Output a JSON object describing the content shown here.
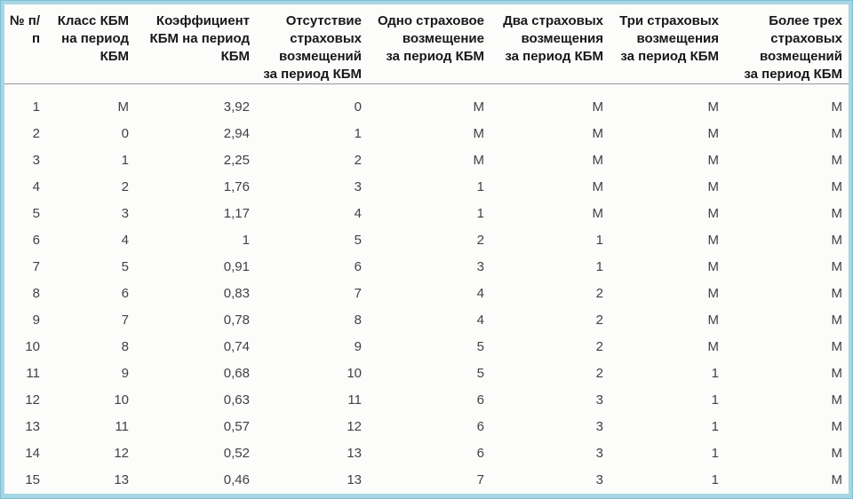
{
  "chart_data": {
    "type": "table",
    "title": "",
    "columns": [
      "№ п/п",
      "Класс КБМ на период КБМ",
      "Коэффициент КБМ на период КБМ",
      "Отсутствие страховых возмещений за период КБМ",
      "Одно страховое возмещение за период КБМ",
      "Два страховых возмещения за период КБМ",
      "Три страховых возмещения за период КБМ",
      "Более трех страховых возмещений за период КБМ"
    ],
    "rows": [
      [
        "1",
        "М",
        "3,92",
        "0",
        "М",
        "М",
        "М",
        "М"
      ],
      [
        "2",
        "0",
        "2,94",
        "1",
        "М",
        "М",
        "М",
        "М"
      ],
      [
        "3",
        "1",
        "2,25",
        "2",
        "М",
        "М",
        "М",
        "М"
      ],
      [
        "4",
        "2",
        "1,76",
        "3",
        "1",
        "М",
        "М",
        "М"
      ],
      [
        "5",
        "3",
        "1,17",
        "4",
        "1",
        "М",
        "М",
        "М"
      ],
      [
        "6",
        "4",
        "1",
        "5",
        "2",
        "1",
        "М",
        "М"
      ],
      [
        "7",
        "5",
        "0,91",
        "6",
        "3",
        "1",
        "М",
        "М"
      ],
      [
        "8",
        "6",
        "0,83",
        "7",
        "4",
        "2",
        "М",
        "М"
      ],
      [
        "9",
        "7",
        "0,78",
        "8",
        "4",
        "2",
        "М",
        "М"
      ],
      [
        "10",
        "8",
        "0,74",
        "9",
        "5",
        "2",
        "М",
        "М"
      ],
      [
        "11",
        "9",
        "0,68",
        "10",
        "5",
        "2",
        "1",
        "М"
      ],
      [
        "12",
        "10",
        "0,63",
        "11",
        "6",
        "3",
        "1",
        "М"
      ],
      [
        "13",
        "11",
        "0,57",
        "12",
        "6",
        "3",
        "1",
        "М"
      ],
      [
        "14",
        "12",
        "0,52",
        "13",
        "6",
        "3",
        "1",
        "М"
      ],
      [
        "15",
        "13",
        "0,46",
        "13",
        "7",
        "3",
        "1",
        "М"
      ]
    ]
  },
  "table": {
    "headers": [
      "№ п/п",
      "Класс КБМ\nна период\nКБМ",
      "Коэффициент\nКБМ на период\nКБМ",
      "Отсутствие\nстраховых\nвозмещений\nза период КБМ",
      "Одно страховое\nвозмещение\nза период КБМ",
      "Два страховых\nвозмещения\nза период КБМ",
      "Три страховых\nвозмещения\nза период КБМ",
      "Более трех\nстраховых\nвозмещений\nза период КБМ"
    ]
  },
  "colors": {
    "frame": "#a6d6e4",
    "frame_edge": "#7fbfd5",
    "table_background": "#fcfcfb",
    "header_rule": "#97989a",
    "header_text": "#17181a",
    "body_text": "#3f4245"
  }
}
